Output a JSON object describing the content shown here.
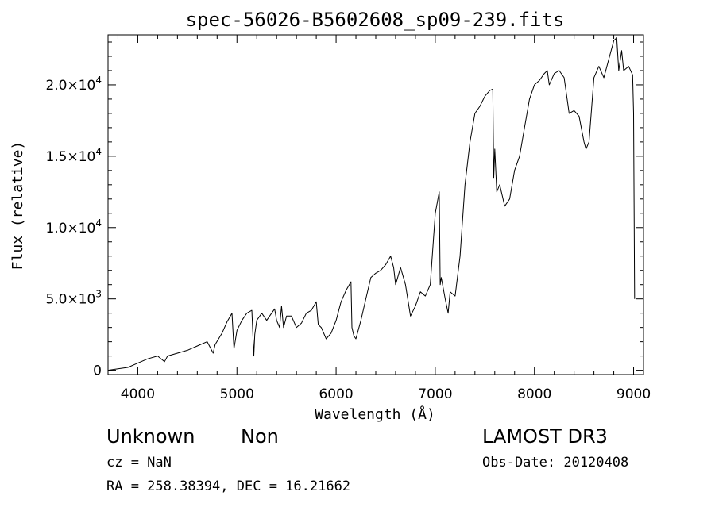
{
  "chart_data": {
    "type": "line",
    "title": "spec-56026-B5602608_sp09-239.fits",
    "xlabel": "Wavelength (Å)",
    "ylabel": "Flux (relative)",
    "xlim": [
      3700,
      9100
    ],
    "ylim": [
      -300,
      23500
    ],
    "x_ticks": [
      4000,
      5000,
      6000,
      7000,
      8000,
      9000
    ],
    "x_tick_labels": [
      "4000",
      "5000",
      "6000",
      "7000",
      "8000",
      "9000"
    ],
    "y_ticks": [
      0,
      5000,
      10000,
      15000,
      20000
    ],
    "y_tick_labels": [
      {
        "mantissa": "0",
        "exponent": ""
      },
      {
        "mantissa": "5.0×10",
        "exponent": "3"
      },
      {
        "mantissa": "1.0×10",
        "exponent": "4"
      },
      {
        "mantissa": "1.5×10",
        "exponent": "4"
      },
      {
        "mantissa": "2.0×10",
        "exponent": "4"
      }
    ],
    "series": [
      {
        "name": "flux",
        "x": [
          3700,
          3800,
          3900,
          4000,
          4100,
          4200,
          4270,
          4300,
          4400,
          4500,
          4600,
          4700,
          4760,
          4780,
          4850,
          4900,
          4950,
          4970,
          5000,
          5050,
          5100,
          5150,
          5170,
          5180,
          5200,
          5250,
          5300,
          5350,
          5380,
          5400,
          5430,
          5450,
          5470,
          5500,
          5550,
          5600,
          5650,
          5700,
          5750,
          5800,
          5820,
          5850,
          5900,
          5950,
          6000,
          6050,
          6100,
          6150,
          6160,
          6180,
          6200,
          6250,
          6300,
          6350,
          6400,
          6450,
          6500,
          6550,
          6580,
          6600,
          6650,
          6700,
          6750,
          6800,
          6850,
          6900,
          6950,
          7000,
          7040,
          7050,
          7060,
          7100,
          7130,
          7150,
          7200,
          7250,
          7300,
          7350,
          7400,
          7450,
          7500,
          7550,
          7580,
          7590,
          7600,
          7620,
          7650,
          7700,
          7750,
          7800,
          7850,
          7900,
          7950,
          8000,
          8050,
          8100,
          8130,
          8150,
          8200,
          8250,
          8300,
          8350,
          8400,
          8450,
          8500,
          8520,
          8550,
          8600,
          8650,
          8700,
          8750,
          8800,
          8830,
          8850,
          8880,
          8900,
          8950,
          8990,
          9000,
          9010
        ],
        "y": [
          0,
          100,
          200,
          500,
          800,
          1000,
          600,
          1000,
          1200,
          1400,
          1700,
          2000,
          1200,
          1800,
          2600,
          3400,
          4000,
          1500,
          2800,
          3500,
          4000,
          4200,
          1000,
          2500,
          3500,
          4000,
          3500,
          4000,
          4300,
          3500,
          3000,
          4500,
          3000,
          3800,
          3800,
          3000,
          3300,
          4000,
          4200,
          4800,
          3200,
          3000,
          2200,
          2600,
          3500,
          4800,
          5600,
          6200,
          3000,
          2400,
          2200,
          3500,
          5000,
          6500,
          6800,
          7000,
          7400,
          8000,
          7200,
          6000,
          7200,
          6000,
          3800,
          4500,
          5500,
          5200,
          6000,
          11000,
          12500,
          6000,
          6500,
          5000,
          4000,
          5500,
          5200,
          8000,
          13000,
          16000,
          18000,
          18500,
          19200,
          19600,
          19700,
          13500,
          15500,
          12500,
          13000,
          11500,
          12000,
          14000,
          15000,
          17000,
          19000,
          20000,
          20300,
          20800,
          21000,
          20000,
          20800,
          21000,
          20500,
          18000,
          18200,
          17800,
          16000,
          15500,
          16000,
          20500,
          21300,
          20500,
          21800,
          23100,
          23300,
          21000,
          22400,
          21000,
          21300,
          20700,
          18000,
          5000
        ]
      }
    ]
  },
  "info": {
    "object_class": "Unknown",
    "object_subclass": "Non",
    "survey": "LAMOST DR3",
    "cz": "cz = NaN",
    "obs_date": "Obs-Date: 20120408",
    "radec": "RA = 258.38394, DEC =  16.21662"
  }
}
